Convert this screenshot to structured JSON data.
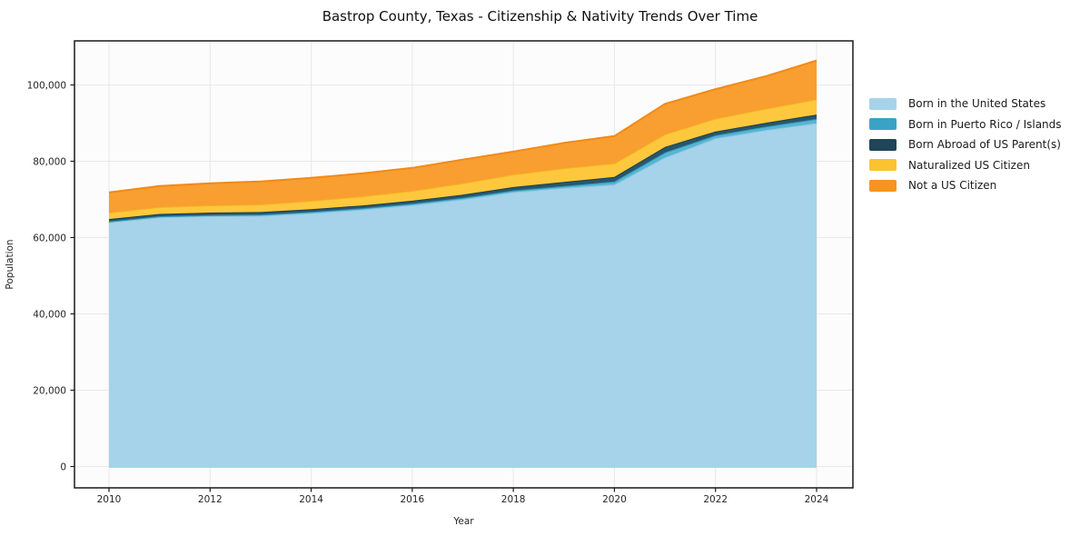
{
  "chart_data": {
    "type": "area",
    "stacked": true,
    "title": "Bastrop County, Texas - Citizenship & Nativity Trends Over Time",
    "xlabel": "Year",
    "ylabel": "Population",
    "grid": true,
    "legend_position": "right-outside",
    "x": [
      2010,
      2011,
      2012,
      2013,
      2014,
      2015,
      2016,
      2017,
      2018,
      2019,
      2020,
      2021,
      2022,
      2023,
      2024
    ],
    "x_tick_labels": [
      "2010",
      "2012",
      "2014",
      "2016",
      "2018",
      "2020",
      "2022",
      "2024"
    ],
    "x_tick_values": [
      2010,
      2012,
      2014,
      2016,
      2018,
      2020,
      2022,
      2024
    ],
    "y_tick_labels": [
      "0",
      "20,000",
      "40,000",
      "60,000",
      "80,000",
      "100,000"
    ],
    "y_tick_values": [
      0,
      20000,
      40000,
      60000,
      80000,
      100000
    ],
    "ylim": [
      0,
      111500
    ],
    "series": [
      {
        "name": "Born in the United States",
        "color": "#a6d3ea",
        "fill": "#a6d3ea",
        "stroke": "#8fc6e2",
        "values": [
          64000,
          65300,
          65600,
          65700,
          66400,
          67300,
          68500,
          70000,
          71900,
          73000,
          73900,
          81000,
          86000,
          88200,
          90000
        ]
      },
      {
        "name": "Born in Puerto Rico / Islands",
        "color": "#3aa3c5",
        "fill": "#55b6d3",
        "stroke": "#2d96b8",
        "values": [
          250,
          280,
          300,
          320,
          350,
          380,
          400,
          430,
          450,
          500,
          790,
          1340,
          800,
          900,
          1100
        ]
      },
      {
        "name": "Born Abroad of US Parent(s)",
        "color": "#1f4558",
        "fill": "#29566d",
        "stroke": "#1b3f50",
        "values": [
          600,
          620,
          650,
          680,
          700,
          720,
          760,
          800,
          900,
          1100,
          1190,
          1430,
          1000,
          1000,
          1150
        ]
      },
      {
        "name": "Naturalized US Citizen",
        "color": "#fcc330",
        "fill": "#fdc83e",
        "stroke": "#f4b31c",
        "values": [
          1700,
          1800,
          1900,
          2000,
          2200,
          2400,
          2600,
          3000,
          3300,
          3600,
          3570,
          3330,
          3400,
          3700,
          4000
        ]
      },
      {
        "name": "Not a US Citizen",
        "color": "#f7941f",
        "fill": "#f99e31",
        "stroke": "#f18a16",
        "values": [
          5300,
          5500,
          5800,
          6000,
          6000,
          6000,
          6000,
          6200,
          6000,
          6600,
          7150,
          7950,
          7700,
          8500,
          10150
        ]
      }
    ]
  }
}
